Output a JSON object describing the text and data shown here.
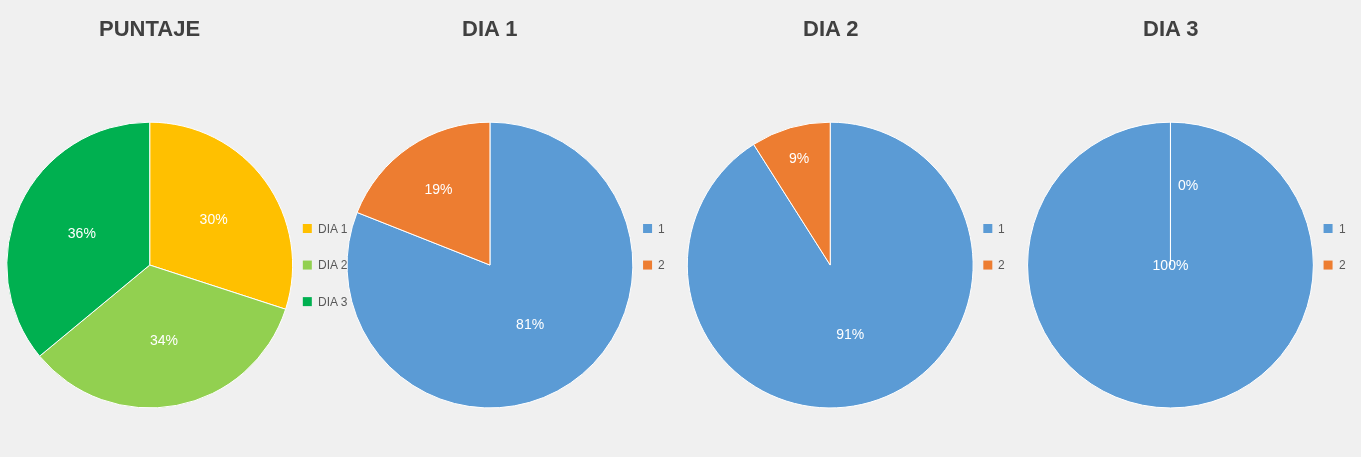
{
  "chart_data": [
    {
      "type": "pie",
      "title": "PUNTAJE",
      "categories": [
        "DIA 1",
        "DIA 2",
        "DIA 3"
      ],
      "values": [
        30,
        34,
        36
      ],
      "colors": [
        "#ffc000",
        "#92d050",
        "#00b050"
      ],
      "value_labels": [
        "30%",
        "34%",
        "36%"
      ],
      "legend": "right"
    },
    {
      "type": "pie",
      "title": "DIA 1",
      "categories": [
        "1",
        "2"
      ],
      "values": [
        81,
        19
      ],
      "colors": [
        "#5b9bd5",
        "#ed7d31"
      ],
      "value_labels": [
        "81%",
        "19%"
      ],
      "legend": "right"
    },
    {
      "type": "pie",
      "title": "DIA 2",
      "categories": [
        "1",
        "2"
      ],
      "values": [
        91,
        9
      ],
      "colors": [
        "#5b9bd5",
        "#ed7d31"
      ],
      "value_labels": [
        "91%",
        "9%"
      ],
      "legend": "right"
    },
    {
      "type": "pie",
      "title": "DIA 3",
      "categories": [
        "1",
        "2"
      ],
      "values": [
        100,
        0
      ],
      "colors": [
        "#5b9bd5",
        "#ed7d31"
      ],
      "value_labels": [
        "100%",
        "0%"
      ],
      "legend": "right"
    }
  ]
}
